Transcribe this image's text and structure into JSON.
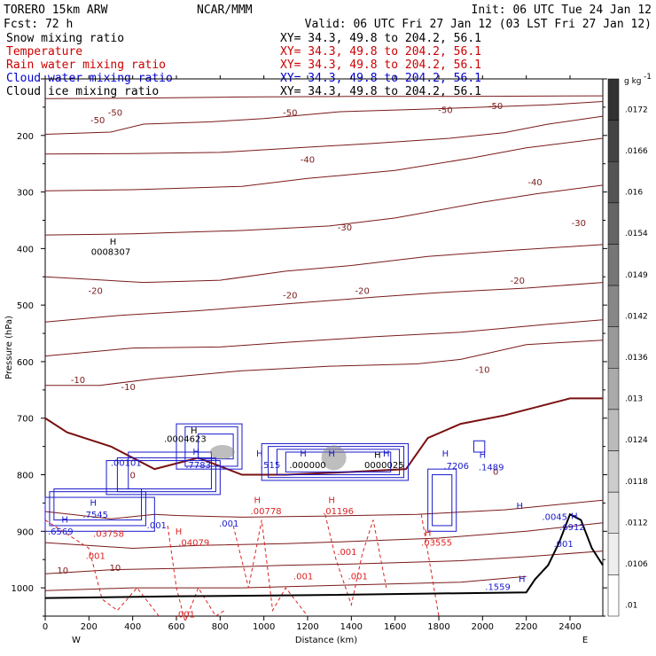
{
  "header": {
    "model": "TORERO  15km ARW",
    "center": "NCAR/MMM",
    "init": "Init: 06 UTC Tue 24 Jan 12",
    "fcst": "Fcst:   72 h",
    "valid": "Valid: 06 UTC Fri 27 Jan 12 (03 LST Fri 27 Jan 12)"
  },
  "fields": [
    {
      "name": "Snow mixing ratio",
      "xy": "XY=  34.3, 49.8 to 204.2, 56.1",
      "color": "#000000"
    },
    {
      "name": "Temperature",
      "xy": "XY=  34.3, 49.8 to 204.2, 56.1",
      "color": "#cc0000"
    },
    {
      "name": "Rain water mixing ratio",
      "xy": "XY=  34.3, 49.8 to 204.2, 56.1",
      "color": "#cc0000"
    },
    {
      "name": "Cloud water mixing ratio",
      "xy": "XY=  34.3, 49.8 to 204.2, 56.1",
      "color": "#0000cc"
    },
    {
      "name": "Cloud ice mixing ratio",
      "xy": "XY=  34.3, 49.8 to 204.2, 56.1",
      "color": "#000000"
    }
  ],
  "chart_data": {
    "type": "cross-section contour",
    "xlabel": "Distance (km)",
    "ylabel": "Pressure (hPa)",
    "xlim": [
      0,
      2550
    ],
    "ylim": [
      1050,
      100
    ],
    "x_ticks": [
      0,
      200,
      400,
      600,
      800,
      1000,
      1200,
      1400,
      1600,
      1800,
      2000,
      2200,
      2400
    ],
    "y_ticks": [
      200,
      300,
      400,
      500,
      600,
      700,
      800,
      900,
      1000
    ],
    "west_label": "W",
    "east_label": "E",
    "colorbar": {
      "unit": "g kg",
      "unit_exp": "-1",
      "labels": [
        ".0172",
        ".0166",
        ".016",
        ".0154",
        ".0149",
        ".0142",
        ".0136",
        ".013",
        ".0124",
        ".0118",
        ".0112",
        ".0106",
        ".01"
      ]
    },
    "temperature_labels": [
      {
        "x": 320,
        "p": 165,
        "t": "-50"
      },
      {
        "x": 1120,
        "p": 165,
        "t": "-50"
      },
      {
        "x": 1830,
        "p": 160,
        "t": "-50"
      },
      {
        "x": 2060,
        "p": 153,
        "t": "-50"
      },
      {
        "x": 240,
        "p": 178,
        "t": "-50"
      },
      {
        "x": 1200,
        "p": 248,
        "t": "-40"
      },
      {
        "x": 2240,
        "p": 288,
        "t": "-40"
      },
      {
        "x": 1370,
        "p": 368,
        "t": "-30"
      },
      {
        "x": 2440,
        "p": 360,
        "t": "-30"
      },
      {
        "x": 230,
        "p": 480,
        "t": "-20"
      },
      {
        "x": 1120,
        "p": 488,
        "t": "-20"
      },
      {
        "x": 1450,
        "p": 480,
        "t": "-20"
      },
      {
        "x": 2160,
        "p": 462,
        "t": "-20"
      },
      {
        "x": 150,
        "p": 638,
        "t": "-10"
      },
      {
        "x": 380,
        "p": 650,
        "t": "-10"
      },
      {
        "x": 2000,
        "p": 620,
        "t": "-10"
      },
      {
        "x": 400,
        "p": 806,
        "t": "0"
      },
      {
        "x": 2060,
        "p": 800,
        "t": "0"
      },
      {
        "x": 80,
        "p": 975,
        "t": "10"
      },
      {
        "x": 320,
        "p": 970,
        "t": "10"
      }
    ],
    "rain_labels": [
      {
        "x": 230,
        "p": 949,
        "t": ".001"
      },
      {
        "x": 1180,
        "p": 985,
        "t": ".001"
      },
      {
        "x": 1380,
        "p": 942,
        "t": ".001"
      },
      {
        "x": 1430,
        "p": 985,
        "t": ".001"
      },
      {
        "x": 640,
        "p": 1052,
        "t": ".001"
      },
      {
        "x": 290,
        "p": 910,
        "t": ".03758"
      },
      {
        "x": 680,
        "p": 925,
        "t": ".04079"
      },
      {
        "x": 1010,
        "p": 870,
        "t": ".00778"
      },
      {
        "x": 1340,
        "p": 870,
        "t": ".01196"
      },
      {
        "x": 1790,
        "p": 925,
        "t": ".03555"
      }
    ],
    "rain_highs": [
      {
        "x": 610,
        "p": 906
      },
      {
        "x": 970,
        "p": 850
      },
      {
        "x": 1310,
        "p": 850
      },
      {
        "x": 1750,
        "p": 908
      }
    ],
    "cloud_labels": [
      {
        "x": 370,
        "p": 784,
        "t": ".00101"
      },
      {
        "x": 700,
        "p": 788,
        "t": ".7783"
      },
      {
        "x": 1030,
        "p": 788,
        "t": ".515"
      },
      {
        "x": 230,
        "p": 876,
        "t": ".7545"
      },
      {
        "x": 70,
        "p": 906,
        "t": ".6569"
      },
      {
        "x": 510,
        "p": 895,
        "t": ".001"
      },
      {
        "x": 840,
        "p": 892,
        "t": ".001"
      },
      {
        "x": 1880,
        "p": 790,
        "t": ".7206"
      },
      {
        "x": 2040,
        "p": 792,
        "t": ".1489"
      },
      {
        "x": 2330,
        "p": 880,
        "t": ".0045"
      },
      {
        "x": 2370,
        "p": 928,
        "t": ".001"
      },
      {
        "x": 2410,
        "p": 898,
        "t": ".6912"
      },
      {
        "x": 2070,
        "p": 1004,
        "t": ".1559"
      }
    ],
    "cloud_highs": [
      {
        "x": 220,
        "p": 855
      },
      {
        "x": 90,
        "p": 885
      },
      {
        "x": 690,
        "p": 765
      },
      {
        "x": 980,
        "p": 768
      },
      {
        "x": 1180,
        "p": 768
      },
      {
        "x": 1310,
        "p": 768
      },
      {
        "x": 1560,
        "p": 768
      },
      {
        "x": 1830,
        "p": 768
      },
      {
        "x": 2000,
        "p": 770
      },
      {
        "x": 2180,
        "p": 990
      },
      {
        "x": 2170,
        "p": 860
      },
      {
        "x": 2420,
        "p": 878
      }
    ],
    "ice_labels": [
      {
        "x": 300,
        "p": 411,
        "t": "0008307"
      },
      {
        "x": 640,
        "p": 742,
        "t": ".0004623"
      },
      {
        "x": 1200,
        "p": 788,
        "t": ".000000"
      },
      {
        "x": 1550,
        "p": 788,
        "t": "0000025"
      }
    ],
    "ice_highs": [
      {
        "x": 310,
        "p": 393
      },
      {
        "x": 680,
        "p": 727
      },
      {
        "x": 1520,
        "p": 770
      }
    ]
  }
}
